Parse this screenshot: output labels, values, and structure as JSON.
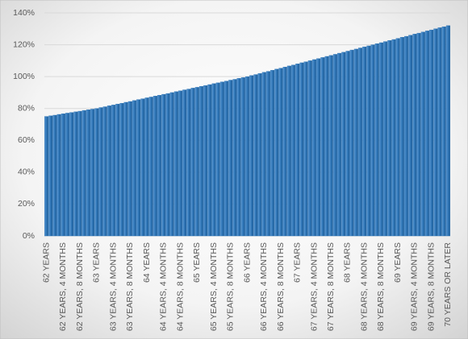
{
  "chart_data": {
    "type": "bar",
    "categories": [
      "62 YEARS",
      null,
      null,
      null,
      "62 YEARS, 4 MONTHS",
      null,
      null,
      null,
      "62 YEARS, 8 MONTHS",
      null,
      null,
      null,
      "63 YEARS",
      null,
      null,
      null,
      "63 YEARS, 4 MONTHS",
      null,
      null,
      null,
      "63 YEARS, 8 MONTHS",
      null,
      null,
      null,
      "64 YEARS",
      null,
      null,
      null,
      "64 YEARS, 4 MONTHS",
      null,
      null,
      null,
      "64 YEARS, 8 MONTHS",
      null,
      null,
      null,
      "65 YEARS",
      null,
      null,
      null,
      "65 YEARS, 4 MONTHS",
      null,
      null,
      null,
      "65 YEARS, 8 MONTHS",
      null,
      null,
      null,
      "66 YEARS",
      null,
      null,
      null,
      "66 YEARS, 4 MONTHS",
      null,
      null,
      null,
      "66 YEARS, 8 MONTHS",
      null,
      null,
      null,
      "67 YEARS",
      null,
      null,
      null,
      "67 YEARS, 4 MONTHS",
      null,
      null,
      null,
      "67 YEARS, 8 MONTHS",
      null,
      null,
      null,
      "68 YEARS",
      null,
      null,
      null,
      "68 YEARS, 4 MONTHS",
      null,
      null,
      null,
      "68 YEARS, 8 MONTHS",
      null,
      null,
      null,
      "69 YEARS",
      null,
      null,
      null,
      "69 YEARS, 4 MONTHS",
      null,
      null,
      null,
      "69 YEARS, 8 MONTHS",
      null,
      null,
      null,
      "70 YEARS OR LATER"
    ],
    "values": [
      75,
      75.4,
      75.8,
      76.3,
      76.7,
      77.1,
      77.5,
      77.9,
      78.3,
      78.8,
      79.2,
      79.6,
      80,
      80.6,
      81.1,
      81.7,
      82.2,
      82.8,
      83.3,
      83.9,
      84.4,
      85,
      85.6,
      86.1,
      86.7,
      87.2,
      87.8,
      88.3,
      88.9,
      89.4,
      90,
      90.6,
      91.1,
      91.7,
      92.2,
      92.8,
      93.3,
      93.9,
      94.4,
      95,
      95.6,
      96.1,
      96.7,
      97.2,
      97.8,
      98.3,
      98.9,
      99.4,
      100,
      100.7,
      101.3,
      102,
      102.7,
      103.3,
      104,
      104.7,
      105.3,
      106,
      106.7,
      107.3,
      108,
      108.7,
      109.3,
      110,
      110.7,
      111.3,
      112,
      112.7,
      113.3,
      114,
      114.7,
      115.3,
      116,
      116.7,
      117.3,
      118,
      118.7,
      119.3,
      120,
      120.7,
      121.3,
      122,
      122.7,
      123.3,
      124,
      124.7,
      125.3,
      126,
      126.7,
      127.3,
      128,
      128.7,
      129.3,
      130,
      130.7,
      131.3,
      132
    ],
    "color": "#2e75b6",
    "ylim": [
      0,
      140
    ],
    "yticks": [
      {
        "value": 0,
        "label": "0%"
      },
      {
        "value": 20,
        "label": "20%"
      },
      {
        "value": 40,
        "label": "40%"
      },
      {
        "value": 60,
        "label": "60%"
      },
      {
        "value": 80,
        "label": "80%"
      },
      {
        "value": 100,
        "label": "100%"
      },
      {
        "value": 120,
        "label": "120%"
      },
      {
        "value": 140,
        "label": "140%"
      }
    ],
    "grid": true
  }
}
